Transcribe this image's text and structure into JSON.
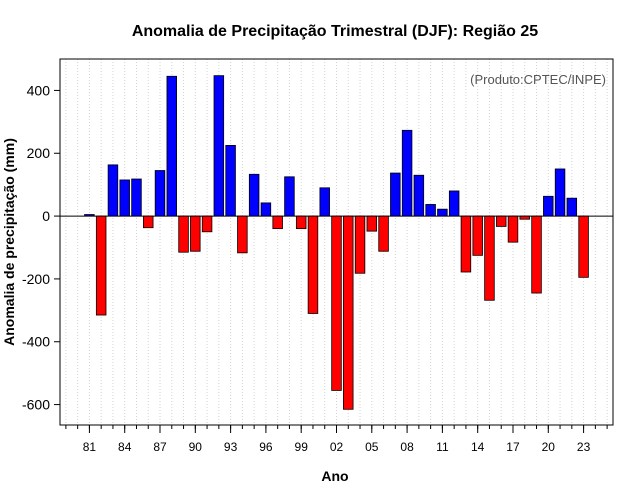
{
  "chart_data": {
    "type": "bar",
    "title": "Anomalia de Precipitação Trimestral (DJF): Região 25",
    "xlabel": "Ano",
    "ylabel": "Anomalia de precipitação (mm)",
    "credit": "(Produto:CPTEC/INPE)",
    "ylim": [
      -665,
      500
    ],
    "yticks": [
      -600,
      -400,
      -200,
      0,
      200,
      400
    ],
    "ytick_labels": [
      "-600",
      "-400",
      "-200",
      "0",
      "200",
      "400"
    ],
    "xlim": [
      1978.5,
      2025.5
    ],
    "xticks": [
      1981,
      1984,
      1987,
      1990,
      1993,
      1996,
      1999,
      2002,
      2005,
      2008,
      2011,
      2014,
      2017,
      2020,
      2023
    ],
    "xtick_labels": [
      "81",
      "84",
      "87",
      "90",
      "93",
      "96",
      "99",
      "02",
      "05",
      "08",
      "11",
      "14",
      "17",
      "20",
      "23"
    ],
    "grid": "vertical-dotted",
    "colors": {
      "positive": "#0000ff",
      "negative": "#ff0000",
      "zero_line": "#000000",
      "grid": "#d3d3d3"
    },
    "years": [
      1981,
      1982,
      1983,
      1984,
      1985,
      1986,
      1987,
      1988,
      1989,
      1990,
      1991,
      1992,
      1993,
      1994,
      1995,
      1996,
      1997,
      1998,
      1999,
      2000,
      2001,
      2002,
      2003,
      2004,
      2005,
      2006,
      2007,
      2008,
      2009,
      2010,
      2011,
      2012,
      2013,
      2014,
      2015,
      2016,
      2017,
      2018,
      2019,
      2020,
      2021,
      2022,
      2023
    ],
    "values": [
      5,
      -315,
      163,
      115,
      118,
      -37,
      145,
      445,
      -115,
      -112,
      -50,
      447,
      225,
      -117,
      133,
      42,
      -40,
      125,
      -40,
      -310,
      90,
      -555,
      -615,
      -182,
      -48,
      -112,
      137,
      273,
      130,
      37,
      22,
      80,
      -178,
      -125,
      -268,
      -33,
      -83,
      -10,
      -245,
      63,
      150,
      57,
      -195
    ]
  }
}
